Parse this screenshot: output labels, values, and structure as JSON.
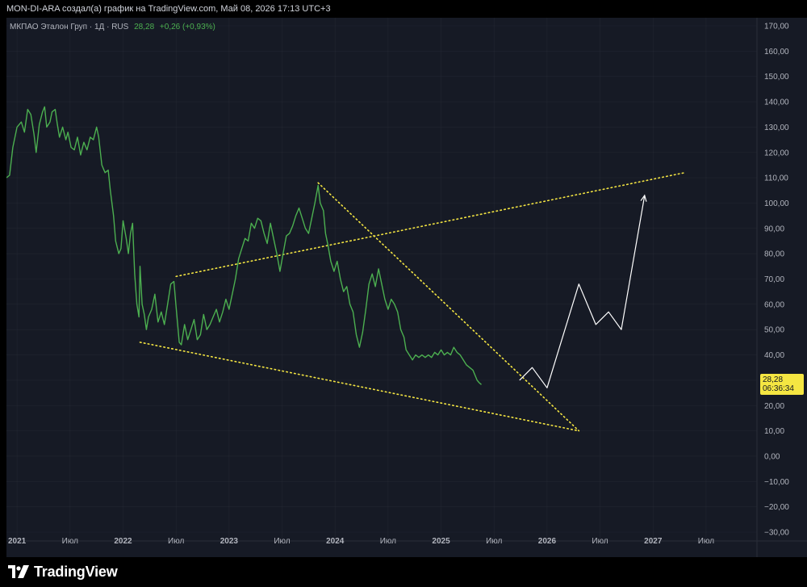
{
  "header": {
    "author_line": "MON-DI-ARA создал(а) график на TradingView.com, Май 08, 2026 17:13 UTC+3"
  },
  "legend": {
    "symbol": "МКПАО Эталон Груп · 1Д · RUS",
    "price": "28,28",
    "change": "+0,26 (+0,93%)"
  },
  "price_label": {
    "price": "28,28",
    "countdown": "06:36:34",
    "color": "#f5e642"
  },
  "brand": {
    "name": "TradingView"
  },
  "colors": {
    "background": "#161a25",
    "price_line": "#4caf50",
    "trendline": "#f5e642",
    "projection": "#ffffff",
    "grid": "#2a2e39",
    "axis_text": "#b2b5be"
  },
  "chart_data": {
    "type": "line",
    "title": "",
    "xlabel": "",
    "ylabel": "",
    "ylim": [
      -30,
      170
    ],
    "xlim": [
      2020.9,
      2027.98
    ],
    "y_ticks": [
      170,
      160,
      150,
      140,
      130,
      120,
      110,
      100,
      90,
      80,
      70,
      60,
      50,
      40,
      30,
      20,
      10,
      0,
      -10,
      -20,
      -30
    ],
    "y_tick_labels": [
      "170,00",
      "160,00",
      "150,00",
      "140,00",
      "130,00",
      "120,00",
      "110,00",
      "100,00",
      "90,00",
      "80,00",
      "70,00",
      "60,00",
      "50,00",
      "40,00",
      "30,00",
      "20,00",
      "10,00",
      "0,00",
      "−10,00",
      "−20,00",
      "−30,00"
    ],
    "x_ticks": [
      {
        "t": 2021.0,
        "label": "2021"
      },
      {
        "t": 2021.5,
        "label": "Июл"
      },
      {
        "t": 2022.0,
        "label": "2022"
      },
      {
        "t": 2022.5,
        "label": "Июл"
      },
      {
        "t": 2023.0,
        "label": "2023"
      },
      {
        "t": 2023.5,
        "label": "Июл"
      },
      {
        "t": 2024.0,
        "label": "2024"
      },
      {
        "t": 2024.5,
        "label": "Июл"
      },
      {
        "t": 2025.0,
        "label": "2025"
      },
      {
        "t": 2025.5,
        "label": "Июл"
      },
      {
        "t": 2026.0,
        "label": "2026"
      },
      {
        "t": 2026.5,
        "label": "Июл"
      },
      {
        "t": 2027.0,
        "label": "2027"
      },
      {
        "t": 2027.5,
        "label": "Июл"
      }
    ],
    "grid": true,
    "series": [
      {
        "points": [
          [
            2020.9,
            110
          ],
          [
            2020.93,
            111
          ],
          [
            2020.96,
            122
          ],
          [
            2021.0,
            130
          ],
          [
            2021.04,
            132
          ],
          [
            2021.07,
            128
          ],
          [
            2021.1,
            137
          ],
          [
            2021.13,
            135
          ],
          [
            2021.16,
            127
          ],
          [
            2021.18,
            120
          ],
          [
            2021.21,
            131
          ],
          [
            2021.24,
            136
          ],
          [
            2021.26,
            138
          ],
          [
            2021.28,
            130
          ],
          [
            2021.31,
            132
          ],
          [
            2021.33,
            136
          ],
          [
            2021.36,
            137
          ],
          [
            2021.38,
            131
          ],
          [
            2021.4,
            126
          ],
          [
            2021.43,
            130
          ],
          [
            2021.46,
            125
          ],
          [
            2021.48,
            128
          ],
          [
            2021.51,
            122
          ],
          [
            2021.54,
            121
          ],
          [
            2021.57,
            126
          ],
          [
            2021.6,
            119
          ],
          [
            2021.63,
            124
          ],
          [
            2021.66,
            121
          ],
          [
            2021.69,
            126
          ],
          [
            2021.72,
            125
          ],
          [
            2021.75,
            130
          ],
          [
            2021.77,
            126
          ],
          [
            2021.8,
            115
          ],
          [
            2021.83,
            112
          ],
          [
            2021.86,
            113
          ],
          [
            2021.88,
            105
          ],
          [
            2021.91,
            95
          ],
          [
            2021.93,
            85
          ],
          [
            2021.96,
            80
          ],
          [
            2021.98,
            82
          ],
          [
            2022.0,
            93
          ],
          [
            2022.03,
            86
          ],
          [
            2022.05,
            80
          ],
          [
            2022.07,
            88
          ],
          [
            2022.09,
            92
          ],
          [
            2022.11,
            72
          ],
          [
            2022.13,
            60
          ],
          [
            2022.15,
            55
          ],
          [
            2022.16,
            75
          ],
          [
            2022.18,
            60
          ],
          [
            2022.2,
            56
          ],
          [
            2022.22,
            50
          ],
          [
            2022.24,
            55
          ],
          [
            2022.27,
            58
          ],
          [
            2022.3,
            64
          ],
          [
            2022.33,
            53
          ],
          [
            2022.36,
            57
          ],
          [
            2022.39,
            52
          ],
          [
            2022.42,
            60
          ],
          [
            2022.45,
            68
          ],
          [
            2022.48,
            69
          ],
          [
            2022.5,
            59
          ],
          [
            2022.53,
            45
          ],
          [
            2022.55,
            44
          ],
          [
            2022.58,
            52
          ],
          [
            2022.61,
            46
          ],
          [
            2022.64,
            50
          ],
          [
            2022.67,
            54
          ],
          [
            2022.7,
            46
          ],
          [
            2022.73,
            48
          ],
          [
            2022.76,
            56
          ],
          [
            2022.79,
            50
          ],
          [
            2022.82,
            52
          ],
          [
            2022.85,
            55
          ],
          [
            2022.88,
            58
          ],
          [
            2022.91,
            53
          ],
          [
            2022.94,
            57
          ],
          [
            2022.97,
            62
          ],
          [
            2023.0,
            58
          ],
          [
            2023.03,
            64
          ],
          [
            2023.06,
            70
          ],
          [
            2023.09,
            78
          ],
          [
            2023.12,
            82
          ],
          [
            2023.15,
            86
          ],
          [
            2023.18,
            85
          ],
          [
            2023.21,
            92
          ],
          [
            2023.24,
            90
          ],
          [
            2023.27,
            94
          ],
          [
            2023.3,
            93
          ],
          [
            2023.33,
            88
          ],
          [
            2023.36,
            84
          ],
          [
            2023.39,
            92
          ],
          [
            2023.42,
            86
          ],
          [
            2023.45,
            80
          ],
          [
            2023.48,
            73
          ],
          [
            2023.51,
            80
          ],
          [
            2023.54,
            87
          ],
          [
            2023.57,
            88
          ],
          [
            2023.6,
            91
          ],
          [
            2023.63,
            95
          ],
          [
            2023.66,
            98
          ],
          [
            2023.69,
            94
          ],
          [
            2023.72,
            90
          ],
          [
            2023.75,
            88
          ],
          [
            2023.78,
            94
          ],
          [
            2023.81,
            100
          ],
          [
            2023.84,
            107
          ],
          [
            2023.86,
            100
          ],
          [
            2023.89,
            97
          ],
          [
            2023.91,
            88
          ],
          [
            2023.93,
            84
          ],
          [
            2023.96,
            77
          ],
          [
            2023.99,
            73
          ],
          [
            2024.02,
            77
          ],
          [
            2024.05,
            70
          ],
          [
            2024.08,
            65
          ],
          [
            2024.11,
            67
          ],
          [
            2024.14,
            60
          ],
          [
            2024.17,
            57
          ],
          [
            2024.2,
            48
          ],
          [
            2024.23,
            43
          ],
          [
            2024.26,
            49
          ],
          [
            2024.29,
            58
          ],
          [
            2024.32,
            68
          ],
          [
            2024.35,
            72
          ],
          [
            2024.38,
            67
          ],
          [
            2024.41,
            74
          ],
          [
            2024.44,
            68
          ],
          [
            2024.47,
            62
          ],
          [
            2024.5,
            58
          ],
          [
            2024.53,
            62
          ],
          [
            2024.56,
            60
          ],
          [
            2024.59,
            57
          ],
          [
            2024.62,
            50
          ],
          [
            2024.65,
            47
          ],
          [
            2024.67,
            42
          ],
          [
            2024.7,
            40
          ],
          [
            2024.73,
            38
          ],
          [
            2024.76,
            40
          ],
          [
            2024.79,
            39
          ],
          [
            2024.82,
            40
          ],
          [
            2024.85,
            39
          ],
          [
            2024.88,
            40
          ],
          [
            2024.91,
            39
          ],
          [
            2024.94,
            41
          ],
          [
            2024.97,
            40
          ],
          [
            2025.0,
            42
          ],
          [
            2025.03,
            40
          ],
          [
            2025.06,
            41
          ],
          [
            2025.09,
            40
          ],
          [
            2025.12,
            43
          ],
          [
            2025.15,
            41
          ],
          [
            2025.18,
            40
          ],
          [
            2025.21,
            38
          ],
          [
            2025.24,
            36
          ],
          [
            2025.27,
            35
          ],
          [
            2025.3,
            34
          ],
          [
            2025.32,
            32
          ],
          [
            2025.34,
            30
          ],
          [
            2025.36,
            29
          ],
          [
            2025.38,
            28.28
          ]
        ]
      }
    ],
    "projection_path": [
      [
        2025.74,
        30
      ],
      [
        2025.86,
        35
      ],
      [
        2026.0,
        27
      ],
      [
        2026.3,
        68
      ],
      [
        2026.46,
        52
      ],
      [
        2026.58,
        57
      ],
      [
        2026.7,
        50
      ],
      [
        2026.92,
        103
      ]
    ],
    "trendlines": [
      {
        "from": [
          2022.16,
          45
        ],
        "to": [
          2026.3,
          10
        ]
      },
      {
        "from": [
          2023.84,
          108
        ],
        "to": [
          2026.3,
          10
        ]
      },
      {
        "from": [
          2022.5,
          71
        ],
        "to": [
          2027.3,
          112
        ]
      }
    ]
  }
}
